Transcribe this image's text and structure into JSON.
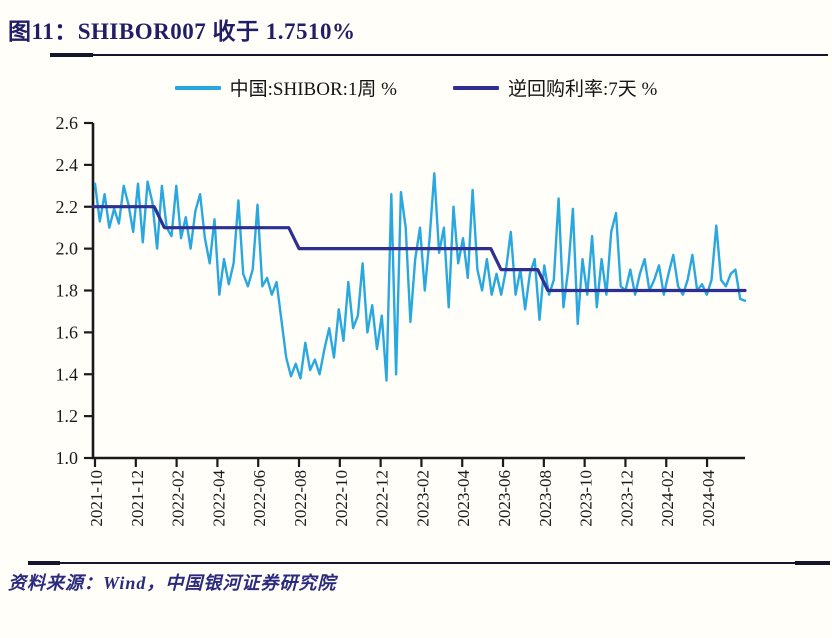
{
  "figure": {
    "title": "图11：SHIBOR007 收于 1.7510%",
    "source": "资料来源：Wind，中国银河证券研究院",
    "closing_value_pct": "1.7510%"
  },
  "legend": [
    {
      "label": "中国:SHIBOR:1周 %",
      "color": "#29A8E0"
    },
    {
      "label": "逆回购利率:7天 %",
      "color": "#2D2F92"
    }
  ],
  "colors": {
    "axis": "#1A1A1A",
    "shibor_line": "#29A8E0",
    "repo_line": "#2D2F92",
    "title_text": "#211E66",
    "background": "#FFFEF8"
  },
  "chart_data": {
    "type": "line",
    "title": "图11：SHIBOR007 收于 1.7510%",
    "xlabel": "",
    "ylabel": "",
    "grid": false,
    "legend_position": "top-center",
    "ylim": [
      1.0,
      2.6
    ],
    "y_ticks": [
      2.6,
      2.4,
      2.2,
      2.0,
      1.8,
      1.6,
      1.4,
      1.2,
      1.0
    ],
    "x_ticks": [
      "2021-10",
      "2021-12",
      "2022-02",
      "2022-04",
      "2022-06",
      "2022-08",
      "2022-10",
      "2022-12",
      "2023-02",
      "2023-04",
      "2023-06",
      "2023-08",
      "2023-10",
      "2023-12",
      "2024-02",
      "2024-04"
    ],
    "x_tick_interval_months": 2,
    "t_span": [
      0,
      31.86
    ],
    "series": [
      {
        "name": "中国:SHIBOR:1周 %",
        "color": "#29A8E0",
        "kind": "weekly-values",
        "last_value": 1.751,
        "values": [
          2.31,
          2.13,
          2.26,
          2.1,
          2.19,
          2.12,
          2.3,
          2.21,
          2.08,
          2.31,
          2.03,
          2.32,
          2.22,
          2.0,
          2.3,
          2.1,
          2.06,
          2.3,
          2.05,
          2.15,
          2.0,
          2.18,
          2.26,
          2.05,
          1.93,
          2.14,
          1.78,
          1.95,
          1.83,
          1.93,
          2.23,
          1.88,
          1.82,
          1.9,
          2.21,
          1.82,
          1.86,
          1.78,
          1.84,
          1.66,
          1.48,
          1.39,
          1.45,
          1.38,
          1.55,
          1.42,
          1.47,
          1.4,
          1.52,
          1.62,
          1.48,
          1.71,
          1.56,
          1.84,
          1.62,
          1.68,
          1.93,
          1.6,
          1.73,
          1.52,
          1.68,
          1.37,
          2.26,
          1.4,
          2.27,
          2.1,
          1.65,
          1.95,
          2.1,
          1.8,
          2.05,
          2.36,
          1.98,
          2.1,
          1.72,
          2.2,
          1.93,
          2.05,
          1.86,
          2.28,
          1.9,
          1.8,
          1.95,
          1.78,
          1.88,
          1.78,
          1.9,
          2.08,
          1.78,
          1.9,
          1.71,
          1.88,
          1.95,
          1.66,
          1.92,
          1.78,
          1.85,
          2.24,
          1.72,
          1.9,
          2.19,
          1.64,
          1.95,
          1.78,
          2.06,
          1.72,
          1.95,
          1.78,
          2.08,
          2.17,
          1.82,
          1.8,
          1.9,
          1.78,
          1.88,
          1.95,
          1.8,
          1.85,
          1.92,
          1.78,
          1.88,
          1.97,
          1.82,
          1.78,
          1.85,
          1.97,
          1.8,
          1.83,
          1.78,
          1.85,
          2.11,
          1.85,
          1.82,
          1.88,
          1.9,
          1.76,
          1.751
        ]
      },
      {
        "name": "逆回购利率:7天 %",
        "color": "#2D2F92",
        "kind": "step",
        "breakpoints": [
          {
            "t": -0.1,
            "rate": 2.2
          },
          {
            "t": 2.9,
            "rate": 2.2
          },
          {
            "t": 3.4,
            "rate": 2.1
          },
          {
            "t": 9.5,
            "rate": 2.1
          },
          {
            "t": 10.0,
            "rate": 2.0
          },
          {
            "t": 19.4,
            "rate": 2.0
          },
          {
            "t": 19.9,
            "rate": 1.9
          },
          {
            "t": 21.7,
            "rate": 1.9
          },
          {
            "t": 22.2,
            "rate": 1.8
          },
          {
            "t": 31.86,
            "rate": 1.8
          }
        ]
      }
    ]
  }
}
